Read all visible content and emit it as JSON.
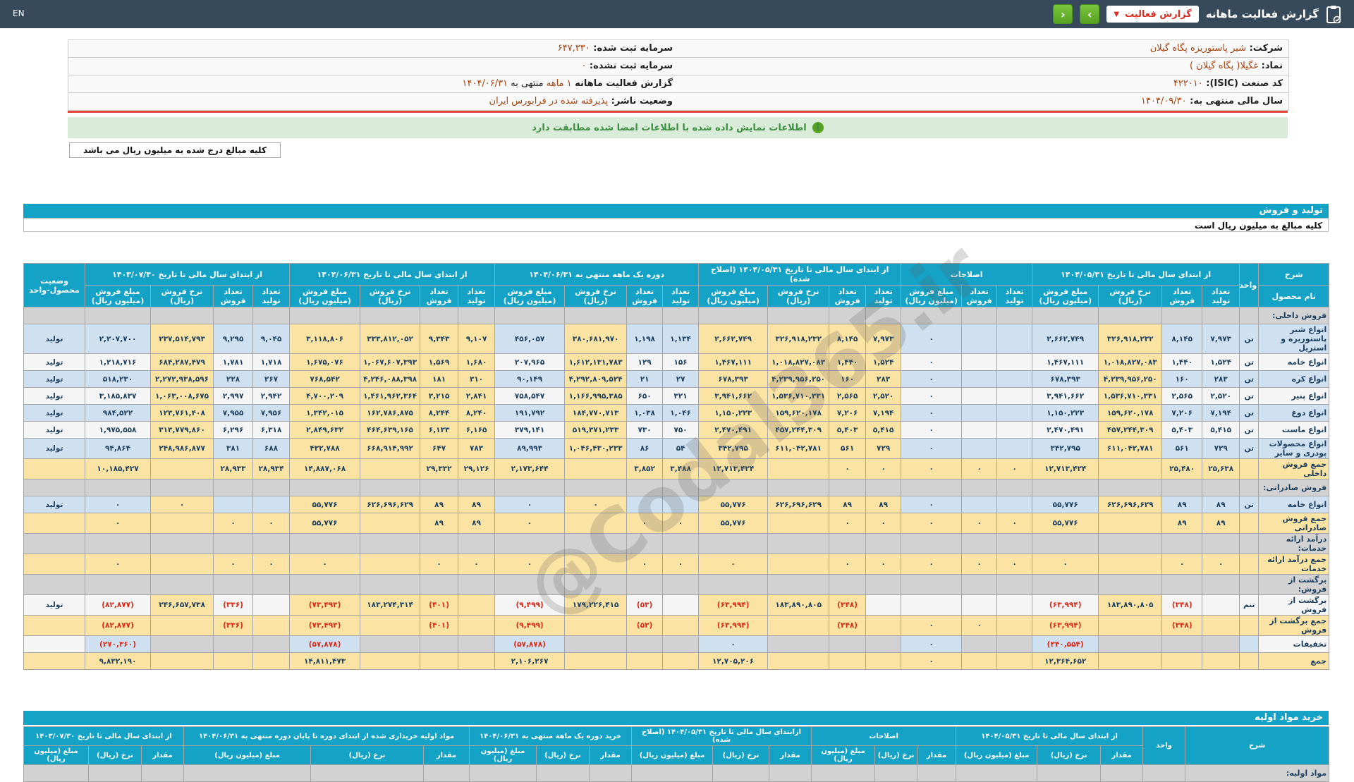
{
  "topbar": {
    "title": "گزارش فعالیت ماهانه",
    "dropdown_label": "گزارش فعالیت",
    "prev_arrow": "‹",
    "next_arrow": "›",
    "en_label": "EN",
    "bar_color": "#374a5c",
    "button_color": "#65b22e",
    "dropdown_text_color": "#d93025"
  },
  "info": {
    "rows": [
      {
        "right_label": "شرکت:",
        "right_runs": [
          [
            "شیر پاستوریزه پگاه گیلان",
            "r"
          ]
        ],
        "left_label": "سرمایه ثبت شده:",
        "left_runs": [
          [
            "۶۴۷,۳۳۰",
            "r"
          ]
        ]
      },
      {
        "right_label": "نماد:",
        "right_runs": [
          [
            "غگیلا( پگاه گیلان )",
            "r"
          ]
        ],
        "left_label": "سرمایه ثبت نشده:",
        "left_runs": [
          [
            "۰",
            "r"
          ]
        ]
      },
      {
        "right_label": "کد صنعت (ISIC):",
        "right_runs": [
          [
            "۴۲۲۰۱۰",
            "r"
          ]
        ],
        "left_label": "گزارش فعالیت ماهانه",
        "left_runs": [
          [
            "۱ ماهه",
            "r"
          ],
          [
            "منتهی به ",
            "k"
          ],
          [
            "۱۴۰۴/۰۶/۳۱",
            "r"
          ]
        ]
      },
      {
        "right_label": "سال مالی منتهی به:",
        "right_runs": [
          [
            "۱۴۰۴/۰۹/۳۰",
            "r"
          ]
        ],
        "left_label": "وضعیت ناشر:",
        "left_runs": [
          [
            "پذیرفته شده در فرابورس ایران",
            "r"
          ]
        ]
      }
    ],
    "signed_notice": "اطلاعات نمایش داده شده با اطلاعات امضا شده مطابقت دارد",
    "amounts_note": "کلیه مبالغ درج شده به میلیون ریال می باشد"
  },
  "watermark": "@Codal365.ir",
  "sales": {
    "title": "تولید و فروش",
    "note": "کلیه مبالغ به میلیون ریال است",
    "col_desc": "شرح",
    "col_product": "نام محصول",
    "col_unit": "واحد",
    "col_status": "وضعیت محصول-واحد",
    "sub_labels": [
      "تعداد تولید",
      "تعداد فروش",
      "نرخ فروش (ریال)",
      "مبلغ فروش (میلیون ریال)"
    ],
    "groups": [
      {
        "key": "A",
        "label": "از ابتدای سال مالی تا تاریخ ۱۴۰۴/۰۵/۳۱",
        "cols": 4
      },
      {
        "key": "B",
        "label": "اصلاحات",
        "cols": 3
      },
      {
        "key": "C",
        "label": "از ابتدای سال مالی تا تاریخ ۱۴۰۴/۰۵/۳۱ (اصلاح شده)",
        "cols": 4
      },
      {
        "key": "D",
        "label": "دوره یک ماهه منتهی به ۱۴۰۴/۰۶/۳۱",
        "cols": 4
      },
      {
        "key": "E",
        "label": "از ابتدای سال مالی تا تاریخ ۱۴۰۴/۰۶/۳۱",
        "cols": 4
      },
      {
        "key": "F",
        "label": "از ابتدای سال مالی تا تاریخ ۱۴۰۳/۰۷/۳۰",
        "cols": 4
      }
    ],
    "rows": [
      {
        "t": "sec",
        "name": "فروش داخلی:"
      },
      {
        "t": "p",
        "s": "b",
        "name": "انواع شیر پاستوریزه و استریل",
        "unit": "تن",
        "st": "تولید",
        "A": [
          "۷,۹۷۳",
          "۸,۱۴۵",
          "۳۲۶,۹۱۸,۲۳۲",
          "۲,۶۶۲,۷۴۹"
        ],
        "B": [
          "",
          "",
          "۰"
        ],
        "C": [
          "۷,۹۷۳",
          "۸,۱۴۵",
          "۳۲۶,۹۱۸,۲۳۲",
          "۲,۶۶۲,۷۴۹"
        ],
        "D": [
          "۱,۱۳۴",
          "۱,۱۹۸",
          "۳۸۰,۶۸۱,۹۷۰",
          "۴۵۶,۰۵۷"
        ],
        "E": [
          "۹,۱۰۷",
          "۹,۳۴۳",
          "۳۳۳,۸۱۲,۰۵۲",
          "۳,۱۱۸,۸۰۶"
        ],
        "F": [
          "۹,۰۴۵",
          "۹,۲۹۵",
          "۲۳۷,۵۱۴,۷۹۳",
          "۲,۲۰۷,۷۰۰"
        ]
      },
      {
        "t": "p",
        "s": "w",
        "name": "انواع خامه",
        "unit": "تن",
        "st": "تولید",
        "A": [
          "۱,۵۲۴",
          "۱,۴۴۰",
          "۱,۰۱۸,۸۲۷,۰۸۳",
          "۱,۴۶۷,۱۱۱"
        ],
        "B": [
          "",
          "",
          "۰"
        ],
        "C": [
          "۱,۵۲۴",
          "۱,۴۴۰",
          "۱,۰۱۸,۸۲۷,۰۸۳",
          "۱,۴۶۷,۱۱۱"
        ],
        "D": [
          "۱۵۶",
          "۱۲۹",
          "۱,۶۱۲,۱۳۱,۷۸۳",
          "۲۰۷,۹۶۵"
        ],
        "E": [
          "۱,۶۸۰",
          "۱,۵۶۹",
          "۱,۰۶۷,۶۰۷,۳۹۳",
          "۱,۶۷۵,۰۷۶"
        ],
        "F": [
          "۱,۷۱۸",
          "۱,۷۸۱",
          "۶۸۴,۲۸۷,۴۷۹",
          "۱,۲۱۸,۷۱۶"
        ]
      },
      {
        "t": "p",
        "s": "b",
        "name": "انواع کره",
        "unit": "تن",
        "st": "تولید",
        "A": [
          "۲۸۳",
          "۱۶۰",
          "۴,۲۳۹,۹۵۶,۲۵۰",
          "۶۷۸,۳۹۳"
        ],
        "B": [
          "",
          "",
          "۰"
        ],
        "C": [
          "۲۸۳",
          "۱۶۰",
          "۴,۲۳۹,۹۵۶,۲۵۰",
          "۶۷۸,۳۹۳"
        ],
        "D": [
          "۲۷",
          "۲۱",
          "۴,۲۹۲,۸۰۹,۵۲۴",
          "۹۰,۱۴۹"
        ],
        "E": [
          "۳۱۰",
          "۱۸۱",
          "۴,۲۴۶,۰۸۸,۳۹۸",
          "۷۶۸,۵۴۲"
        ],
        "F": [
          "۲۶۷",
          "۲۲۸",
          "۲,۲۷۲,۹۳۸,۵۹۶",
          "۵۱۸,۲۳۰"
        ]
      },
      {
        "t": "p",
        "s": "w",
        "name": "انواع پنیر",
        "unit": "تن",
        "st": "تولید",
        "A": [
          "۲,۵۲۰",
          "۲,۵۶۵",
          "۱,۵۳۶,۷۱۰,۳۳۱",
          "۳,۹۴۱,۶۶۲"
        ],
        "B": [
          "",
          "",
          "۰"
        ],
        "C": [
          "۲,۵۲۰",
          "۲,۵۶۵",
          "۱,۵۳۶,۷۱۰,۳۳۱",
          "۳,۹۴۱,۶۶۲"
        ],
        "D": [
          "۳۲۱",
          "۶۵۰",
          "۱,۱۶۶,۹۹۵,۳۸۵",
          "۷۵۸,۵۴۷"
        ],
        "E": [
          "۲,۸۴۱",
          "۳,۲۱۵",
          "۱,۴۶۱,۹۶۲,۳۶۴",
          "۴,۷۰۰,۲۰۹"
        ],
        "F": [
          "۲,۹۴۲",
          "۲,۹۹۷",
          "۱,۰۶۳,۰۰۸,۶۷۵",
          "۳,۱۸۵,۸۳۷"
        ]
      },
      {
        "t": "p",
        "s": "b",
        "name": "انواع دوغ",
        "unit": "تن",
        "st": "تولید",
        "A": [
          "۷,۱۹۴",
          "۷,۲۰۶",
          "۱۵۹,۶۲۰,۱۷۸",
          "۱,۱۵۰,۲۲۳"
        ],
        "B": [
          "",
          "",
          "۰"
        ],
        "C": [
          "۷,۱۹۴",
          "۷,۲۰۶",
          "۱۵۹,۶۲۰,۱۷۸",
          "۱,۱۵۰,۲۲۳"
        ],
        "D": [
          "۱,۰۴۶",
          "۱,۰۳۸",
          "۱۸۴,۷۷۰,۷۱۳",
          "۱۹۱,۷۹۲"
        ],
        "E": [
          "۸,۲۴۰",
          "۸,۲۴۴",
          "۱۶۲,۷۸۶,۸۷۵",
          "۱,۳۴۲,۰۱۵"
        ],
        "F": [
          "۷,۹۵۶",
          "۷,۹۵۵",
          "۱۲۳,۷۶۱,۴۰۸",
          "۹۸۴,۵۲۲"
        ]
      },
      {
        "t": "p",
        "s": "w",
        "name": "انواع ماست",
        "unit": "تن",
        "st": "تولید",
        "A": [
          "۵,۴۱۵",
          "۵,۴۰۳",
          "۴۵۷,۲۴۴,۳۰۹",
          "۲,۴۷۰,۴۹۱"
        ],
        "B": [
          "",
          "",
          "۰"
        ],
        "C": [
          "۵,۴۱۵",
          "۵,۴۰۳",
          "۴۵۷,۲۴۴,۳۰۹",
          "۲,۴۷۰,۴۹۱"
        ],
        "D": [
          "۷۵۰",
          "۷۳۰",
          "۵۱۹,۳۷۱,۲۳۳",
          "۳۷۹,۱۴۱"
        ],
        "E": [
          "۶,۱۶۵",
          "۶,۱۳۳",
          "۴۶۴,۶۳۹,۱۶۵",
          "۲,۸۴۹,۶۳۲"
        ],
        "F": [
          "۶,۳۱۸",
          "۶,۲۹۶",
          "۳۱۳,۷۷۹,۸۶۰",
          "۱,۹۷۵,۵۵۸"
        ]
      },
      {
        "t": "p",
        "s": "b",
        "name": "انواع محصولات پودری و سایر",
        "unit": "تن",
        "st": "تولید",
        "A": [
          "۷۲۹",
          "۵۶۱",
          "۶۱۱,۰۴۲,۷۸۱",
          "۳۴۲,۷۹۵"
        ],
        "B": [
          "",
          "",
          "۰"
        ],
        "C": [
          "۷۲۹",
          "۵۶۱",
          "۶۱۱,۰۴۲,۷۸۱",
          "۳۴۲,۷۹۵"
        ],
        "D": [
          "۵۴",
          "۸۶",
          "۱,۰۴۶,۴۳۰,۲۳۳",
          "۸۹,۹۹۳"
        ],
        "E": [
          "۷۸۳",
          "۶۴۷",
          "۶۶۸,۹۱۴,۹۹۲",
          "۴۳۲,۷۸۸"
        ],
        "F": [
          "۶۸۸",
          "۳۸۱",
          "۲۴۸,۹۸۶,۸۷۷",
          "۹۴,۸۶۴"
        ]
      },
      {
        "t": "tot",
        "name": "جمع فروش داخلی",
        "A": [
          "۲۵,۶۳۸",
          "۲۵,۴۸۰",
          "",
          "۱۲,۷۱۳,۴۲۴"
        ],
        "B": [
          "۰",
          "۰",
          "۰"
        ],
        "C": [
          "۰",
          "۰",
          "",
          "۱۲,۷۱۳,۴۲۴"
        ],
        "D": [
          "۳,۴۸۸",
          "۳,۸۵۲",
          "",
          "۲,۱۷۳,۶۴۴"
        ],
        "E": [
          "۲۹,۱۲۶",
          "۲۹,۳۳۲",
          "",
          "۱۴,۸۸۷,۰۶۸"
        ],
        "F": [
          "۲۸,۹۳۴",
          "۲۸,۹۳۳",
          "",
          "۱۰,۱۸۵,۴۲۷"
        ]
      },
      {
        "t": "sec",
        "name": "فروش صادراتی:"
      },
      {
        "t": "p",
        "s": "b",
        "name": "انواع خامه",
        "unit": "تن",
        "st": "تولید",
        "A": [
          "۸۹",
          "۸۹",
          "۶۲۶,۶۹۶,۶۲۹",
          "۵۵,۷۷۶"
        ],
        "B": [
          "",
          "",
          "۰"
        ],
        "C": [
          "۸۹",
          "۸۹",
          "۶۲۶,۶۹۶,۶۲۹",
          "۵۵,۷۷۶"
        ],
        "D": [
          "",
          "",
          "۰",
          "۰"
        ],
        "E": [
          "۸۹",
          "۸۹",
          "۶۲۶,۶۹۶,۶۲۹",
          "۵۵,۷۷۶"
        ],
        "F": [
          "",
          "",
          "۰",
          "۰"
        ]
      },
      {
        "t": "tot",
        "name": "جمع فروش صادراتی",
        "A": [
          "۸۹",
          "۸۹",
          "",
          "۵۵,۷۷۶"
        ],
        "B": [
          "۰",
          "۰",
          "۰"
        ],
        "C": [
          "۰",
          "۰",
          "",
          "۵۵,۷۷۶"
        ],
        "D": [
          "۰",
          "۰",
          "",
          "۰"
        ],
        "E": [
          "۸۹",
          "۸۹",
          "",
          "۵۵,۷۷۶"
        ],
        "F": [
          "۰",
          "۰",
          "",
          "۰"
        ]
      },
      {
        "t": "sec",
        "name": "درآمد ارائه خدمات:"
      },
      {
        "t": "tot",
        "name": "جمع درآمد ارائه خدمات",
        "A": [
          "۰",
          "۰",
          "",
          "۰"
        ],
        "B": [
          "۰",
          "۰",
          "۰"
        ],
        "C": [
          "۰",
          "۰",
          "",
          "۰"
        ],
        "D": [
          "۰",
          "۰",
          "",
          "۰"
        ],
        "E": [
          "۰",
          "۰",
          "",
          "۰"
        ],
        "F": [
          "۰",
          "۰",
          "",
          "۰"
        ]
      },
      {
        "t": "sec",
        "name": "برگشت از فروش:"
      },
      {
        "t": "p",
        "s": "w",
        "name": "برگشت از فروش",
        "unit": "تنم",
        "st": "تولید",
        "ov": {
          "C0": 1
        },
        "A": [
          "",
          "(۳۴۸)",
          "۱۸۳,۸۹۰,۸۰۵",
          "(۶۳,۹۹۴)"
        ],
        "B": [
          "",
          "",
          ""
        ],
        "C": [
          "",
          "(۳۴۸)",
          "۱۸۳,۸۹۰,۸۰۵",
          "(۶۳,۹۹۴)"
        ],
        "D": [
          "",
          "(۵۳)",
          "۱۷۹,۲۲۶,۴۱۵",
          "(۹,۴۹۹)"
        ],
        "E": [
          "",
          "(۴۰۱)",
          "۱۸۳,۲۷۴,۳۱۴",
          "(۷۳,۴۹۳)"
        ],
        "F": [
          "",
          "(۳۳۶)",
          "۲۴۶,۶۵۷,۷۳۸",
          "(۸۲,۸۷۷)"
        ]
      },
      {
        "t": "tot",
        "name": "جمع برگشت از فروش",
        "A": [
          "",
          "(۳۴۸)",
          "",
          "(۶۳,۹۹۴)"
        ],
        "B": [
          "",
          "۰",
          "۰"
        ],
        "C": [
          "",
          "(۳۴۸)",
          "",
          "(۶۳,۹۹۴)"
        ],
        "D": [
          "",
          "(۵۳)",
          "",
          "(۹,۴۹۹)"
        ],
        "E": [
          "",
          "(۴۰۱)",
          "",
          "(۷۳,۴۹۳)"
        ],
        "F": [
          "",
          "(۳۳۶)",
          "",
          "(۸۲,۸۷۷)"
        ]
      },
      {
        "t": "disc",
        "name": "تخفیفات",
        "A": [
          "",
          "",
          "",
          "(۳۴۰,۵۵۴)"
        ],
        "B": [
          "",
          "",
          "۰"
        ],
        "C": [
          "",
          "",
          "",
          "۰"
        ],
        "D": [
          "",
          "",
          "",
          "(۵۷,۸۷۸)"
        ],
        "E": [
          "",
          "",
          "",
          "(۵۷,۸۷۸)"
        ],
        "F": [
          "",
          "",
          "",
          "(۲۷۰,۳۶۰)"
        ]
      },
      {
        "t": "tot",
        "name": "جمع",
        "A": [
          "",
          "",
          "",
          "۱۲,۳۶۴,۶۵۲"
        ],
        "B": [
          "",
          "",
          "۰"
        ],
        "C": [
          "",
          "",
          "",
          "۱۲,۷۰۵,۲۰۶"
        ],
        "D": [
          "",
          "",
          "",
          "۲,۱۰۶,۲۶۷"
        ],
        "E": [
          "",
          "",
          "",
          "۱۴,۸۱۱,۴۷۳"
        ],
        "F": [
          "",
          "",
          "",
          "۹,۸۳۲,۱۹۰"
        ]
      }
    ]
  },
  "purchase": {
    "title": "خرید مواد اولیه",
    "col_desc": "شرح",
    "col_unit": "واحد",
    "sub_labels": [
      "مقدار",
      "نرخ (ریال)",
      "مبلغ (میلیون ریال)"
    ],
    "groups": [
      {
        "label": "از ابتدای سال مالی تا تاریخ ۱۴۰۴/۰۵/۳۱"
      },
      {
        "label": "اصلاحات"
      },
      {
        "label": "ازابتدای سال مالی تا تاریخ ۱۴۰۴/۰۵/۳۱ (اصلاح شده)"
      },
      {
        "label": "خرید دوره یک ماهه منتهی به ۱۴۰۴/۰۶/۳۱"
      },
      {
        "label": "مواد اولیه خریداری شده از ابتدای دوره تا پایان دوره منتهی به ۱۴۰۴/۰۶/۳۱"
      },
      {
        "label": "از ابتدای سال مالی تا تاریخ ۱۴۰۳/۰۷/۳۰"
      }
    ],
    "partial_section": "مواد اولیه:"
  }
}
